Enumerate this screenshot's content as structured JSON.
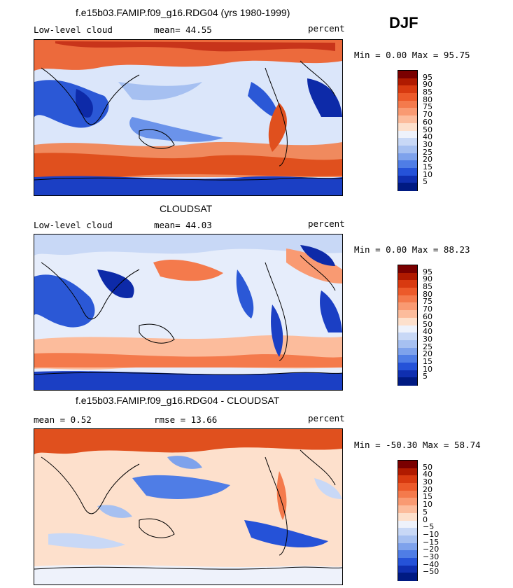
{
  "season": "DJF",
  "panels": [
    {
      "title": "f.e15b03.FAMIP.f09_g16.RDG04 (yrs 1980-1999)",
      "left_label": "Low-level cloud",
      "center_label": "mean=  44.55",
      "right_label": "percent",
      "minmax": "Min =    0.00 Max =  95.75"
    },
    {
      "title": "CLOUDSAT",
      "left_label": "Low-level cloud",
      "center_label": "mean=  44.03",
      "right_label": "percent",
      "minmax": "Min =    0.00 Max =  88.23"
    },
    {
      "title": "f.e15b03.FAMIP.f09_g16.RDG04 - CLOUDSAT",
      "left_label": "mean =    0.52",
      "center_label": "rmse =   13.66",
      "right_label": "percent",
      "minmax": "Min = -50.30 Max =  58.74"
    }
  ],
  "colorbar_abs": {
    "labels": [
      "95",
      "90",
      "85",
      "80",
      "75",
      "70",
      "60",
      "50",
      "40",
      "30",
      "25",
      "20",
      "15",
      "10",
      "5"
    ],
    "colors": [
      "#7a0000",
      "#b01a00",
      "#d83a10",
      "#ec5a2a",
      "#f47a4c",
      "#f99a72",
      "#fcbc9c",
      "#fde0cc",
      "#eef2fb",
      "#c8d8f6",
      "#a6c0f1",
      "#7ea2ec",
      "#4f7de6",
      "#2552d8",
      "#0f2fb0",
      "#001a82"
    ]
  },
  "colorbar_diff": {
    "labels": [
      "50",
      "40",
      "30",
      "20",
      "15",
      "10",
      "5",
      "0",
      "−5",
      "−10",
      "−15",
      "−20",
      "−30",
      "−40",
      "−50"
    ],
    "colors": [
      "#7a0000",
      "#b01a00",
      "#d83a10",
      "#ec5a2a",
      "#f47a4c",
      "#f99a72",
      "#fcbc9c",
      "#fde0cc",
      "#eef2fb",
      "#c8d8f6",
      "#a6c0f1",
      "#7ea2ec",
      "#4f7de6",
      "#2552d8",
      "#0f2fb0",
      "#001a82"
    ]
  }
}
